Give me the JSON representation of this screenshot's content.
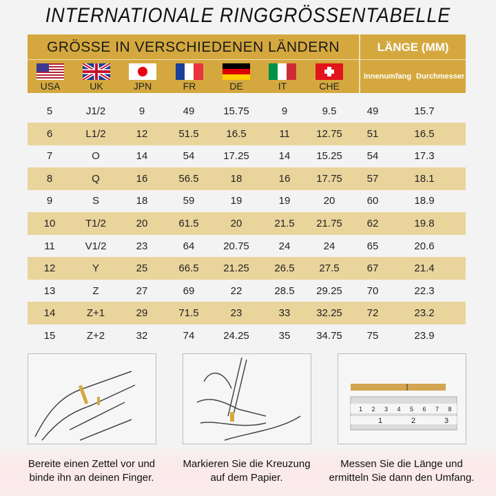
{
  "title": "INTERNATIONALE RINGGRÖSSENTABELLE",
  "header": {
    "countries_label": "GRÖSSE IN VERSCHIEDENEN LÄNDERN",
    "length_label": "LÄNGE (MM)",
    "inner_circ": "Innenumfang",
    "diameter": "Durchmesser",
    "countries": [
      "USA",
      "UK",
      "JPN",
      "FR",
      "DE",
      "IT",
      "CHE"
    ]
  },
  "colors": {
    "gold": "#d4a83e",
    "stripe": "#e9d49c",
    "background": "#f3f3f3"
  },
  "rows": [
    [
      "5",
      "J1/2",
      "9",
      "49",
      "15.75",
      "9",
      "9.5",
      "49",
      "15.7"
    ],
    [
      "6",
      "L1/2",
      "12",
      "51.5",
      "16.5",
      "11",
      "12.75",
      "51",
      "16.5"
    ],
    [
      "7",
      "O",
      "14",
      "54",
      "17.25",
      "14",
      "15.25",
      "54",
      "17.3"
    ],
    [
      "8",
      "Q",
      "16",
      "56.5",
      "18",
      "16",
      "17.75",
      "57",
      "18.1"
    ],
    [
      "9",
      "S",
      "18",
      "59",
      "19",
      "19",
      "20",
      "60",
      "18.9"
    ],
    [
      "10",
      "T1/2",
      "20",
      "61.5",
      "20",
      "21.5",
      "21.75",
      "62",
      "19.8"
    ],
    [
      "11",
      "V1/2",
      "23",
      "64",
      "20.75",
      "24",
      "24",
      "65",
      "20.6"
    ],
    [
      "12",
      "Y",
      "25",
      "66.5",
      "21.25",
      "26.5",
      "27.5",
      "67",
      "21.4"
    ],
    [
      "13",
      "Z",
      "27",
      "69",
      "22",
      "28.5",
      "29.25",
      "70",
      "22.3"
    ],
    [
      "14",
      "Z+1",
      "29",
      "71.5",
      "23",
      "33",
      "32.25",
      "72",
      "23.2"
    ],
    [
      "15",
      "Z+2",
      "32",
      "74",
      "24.25",
      "35",
      "34.75",
      "75",
      "23.9"
    ]
  ],
  "steps": [
    {
      "line1": "Bereite einen Zettel vor und",
      "line2": "binde ihn an deinen Finger."
    },
    {
      "line1": "Markieren Sie die Kreuzung",
      "line2": "auf dem Papier."
    },
    {
      "line1": "Messen Sie die Länge und",
      "line2": "ermitteln Sie dann den Umfang."
    }
  ],
  "ruler": {
    "top_marks": [
      "1",
      "2",
      "3",
      "4",
      "5",
      "6",
      "7",
      "8"
    ],
    "bottom_marks": [
      "1",
      "2",
      "3"
    ]
  }
}
